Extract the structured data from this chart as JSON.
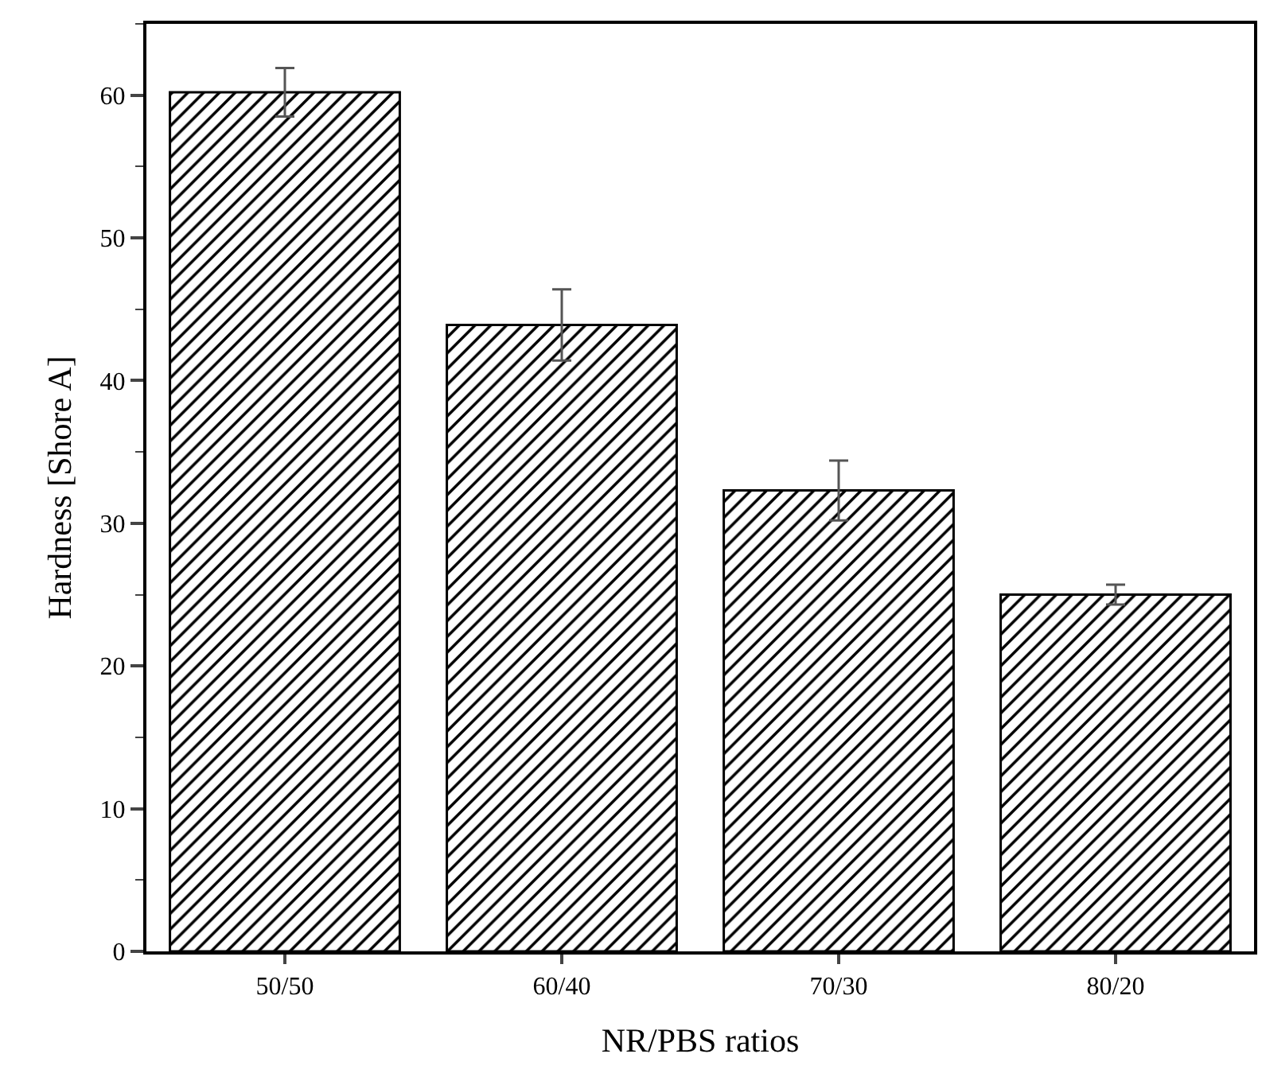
{
  "chart_data": {
    "type": "bar",
    "xlabel": "NR/PBS ratios",
    "ylabel": "Hardness [Shore A]",
    "categories": [
      "50/50",
      "60/40",
      "70/30",
      "80/20"
    ],
    "values": [
      60.2,
      43.9,
      32.3,
      25.0
    ],
    "errors": [
      1.7,
      2.5,
      2.1,
      0.7
    ],
    "color": "#000000",
    "ylim": [
      0,
      65
    ],
    "yticks": [
      0,
      10,
      20,
      30,
      40,
      50,
      60
    ],
    "grid": false
  }
}
